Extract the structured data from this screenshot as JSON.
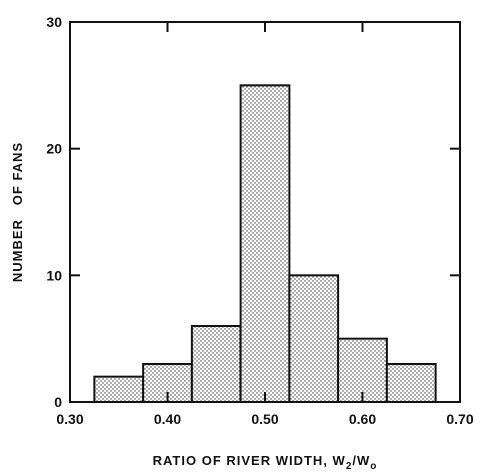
{
  "chart_data": {
    "type": "bar",
    "subtype": "histogram",
    "bins": [
      {
        "x0": 0.325,
        "x1": 0.375,
        "value": 2
      },
      {
        "x0": 0.375,
        "x1": 0.425,
        "value": 3
      },
      {
        "x0": 0.425,
        "x1": 0.475,
        "value": 6
      },
      {
        "x0": 0.475,
        "x1": 0.525,
        "value": 25
      },
      {
        "x0": 0.525,
        "x1": 0.575,
        "value": 10
      },
      {
        "x0": 0.575,
        "x1": 0.625,
        "value": 5
      },
      {
        "x0": 0.625,
        "x1": 0.675,
        "value": 3
      }
    ],
    "title": "",
    "xlabel": "RATIO OF RIVER WIDTH, W",
    "xlabel_sub_1": "2",
    "xlabel_mid": "/W",
    "xlabel_sub_2": "o",
    "ylabel": "NUMBER   OF FANS",
    "xlim": [
      0.3,
      0.7
    ],
    "ylim": [
      0,
      30
    ],
    "xticks": [
      0.3,
      0.4,
      0.5,
      0.6,
      0.7
    ],
    "xtick_labels": [
      "0.30",
      "0.40",
      "0.50",
      "0.60",
      "0.70"
    ],
    "yticks": [
      0,
      10,
      20,
      30
    ],
    "ytick_labels": [
      "0",
      "10",
      "20",
      "30"
    ],
    "grid": false,
    "fill": "stippled"
  }
}
